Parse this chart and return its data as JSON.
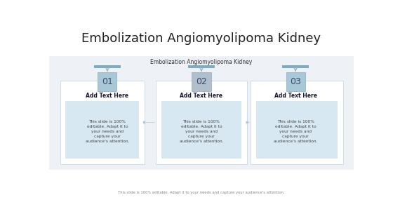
{
  "title": "Embolization Angiomyolipoma Kidney",
  "subtitle": "Embolization Angiomyolipoma Kidney",
  "footer": "This slide is 100% editable. Adapt it to your needs and capture your audience's attention.",
  "bg_color": "#ffffff",
  "panel_bg": "#eef1f5",
  "box_numbers": [
    "01",
    "02",
    "03"
  ],
  "box_colors_1_3": "#a8c8d8",
  "box_color_2": "#b0bece",
  "add_text_header": "Add Text Here",
  "add_text_body": "This slide is 100%\neditable. Adapt it to\nyour needs and\ncapture your\naudience's attention.",
  "header_bar_color": "#7bacc4",
  "arrow_color": "#a0b8c8",
  "title_fontsize": 13,
  "subtitle_fontsize": 5.5,
  "number_fontsize": 9,
  "header_fontsize": 5.5,
  "body_fontsize": 4.2,
  "footer_fontsize": 3.8,
  "outer_card_color": "#ffffff",
  "outer_card_edge": "#c8d8e4",
  "inner_card_color": "#d8e8f2",
  "connector_dot_color": "#b0c8d8"
}
